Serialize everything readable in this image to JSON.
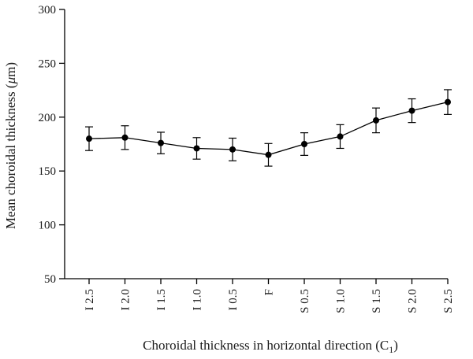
{
  "chart_data": {
    "type": "line",
    "xlabel": "Choroidal thickness in horizontal direction (C",
    "xlabel_sub": "1",
    "xlabel_end": ")",
    "ylabel": "Mean choroidal thickness (",
    "ylabel_unit": "μ",
    "ylabel_end": "m)",
    "ylim": [
      50,
      300
    ],
    "yticks": [
      "50",
      "100",
      "150",
      "200",
      "250",
      "300"
    ],
    "categories": [
      "I 2.5",
      "I 2.0",
      "I 1.5",
      "I 1.0",
      "I 0.5",
      "F",
      "S 0.5",
      "S 1.0",
      "S 1.5",
      "S 2.0",
      "S 2.5"
    ],
    "values": [
      180,
      181,
      176,
      171,
      170,
      165,
      175,
      182,
      197,
      206,
      214
    ],
    "error": [
      11,
      11,
      10,
      10,
      10.5,
      10.5,
      10.5,
      11,
      11.5,
      11,
      11.5
    ],
    "grid": false,
    "line_color": "#000000",
    "marker_color": "#000000"
  }
}
